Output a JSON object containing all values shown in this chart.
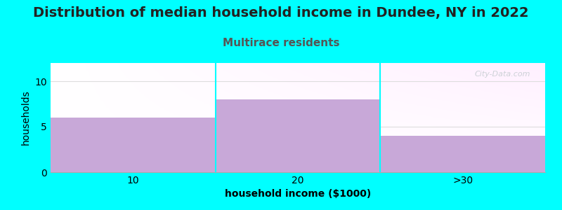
{
  "title": "Distribution of median household income in Dundee, NY in 2022",
  "subtitle": "Multirace residents",
  "xlabel": "household income ($1000)",
  "ylabel": "households",
  "categories": [
    "10",
    "20",
    ">30"
  ],
  "values": [
    6,
    8,
    4
  ],
  "bar_color": "#c8a8d8",
  "background_color": "#00ffff",
  "plot_bg_color": "#f0fff0",
  "ylim": [
    0,
    12
  ],
  "yticks": [
    0,
    5,
    10
  ],
  "title_fontsize": 14,
  "subtitle_fontsize": 11,
  "subtitle_color": "#555555",
  "axis_label_fontsize": 10,
  "tick_fontsize": 10,
  "watermark": "City-Data.com"
}
